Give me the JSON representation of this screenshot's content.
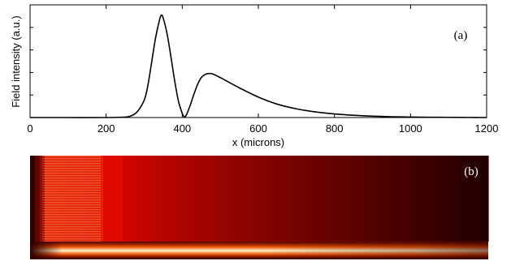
{
  "chart_data": [
    {
      "type": "line",
      "panel_label": "(a)",
      "xlabel": "x (microns)",
      "ylabel": "Field intensity (a.u.)",
      "xlim": [
        0,
        1200
      ],
      "ylim": [
        0,
        1.1
      ],
      "x_ticks": [
        0,
        200,
        400,
        600,
        800,
        1000,
        1200
      ],
      "y_tick_labels_shown": false,
      "grid": false,
      "series": [
        {
          "color": "#000000",
          "x": [
            0,
            100,
            200,
            240,
            260,
            280,
            300,
            310,
            320,
            330,
            340,
            345,
            350,
            360,
            370,
            380,
            390,
            400,
            405,
            410,
            420,
            430,
            440,
            450,
            460,
            470,
            480,
            500,
            520,
            550,
            600,
            650,
            700,
            750,
            800,
            850,
            900,
            950,
            1000,
            1050,
            1100,
            1150,
            1200
          ],
          "y": [
            0,
            0,
            0,
            0.003,
            0.01,
            0.05,
            0.17,
            0.32,
            0.55,
            0.78,
            0.95,
            1.0,
            0.97,
            0.82,
            0.6,
            0.36,
            0.16,
            0.04,
            0.01,
            0.02,
            0.11,
            0.22,
            0.32,
            0.39,
            0.42,
            0.43,
            0.425,
            0.39,
            0.35,
            0.29,
            0.2,
            0.13,
            0.085,
            0.055,
            0.035,
            0.022,
            0.013,
            0.008,
            0.005,
            0.003,
            0.002,
            0.001,
            0.0
          ]
        }
      ]
    },
    {
      "type": "heatmap",
      "panel_label": "(b)",
      "colormap": [
        "#1a0000",
        "#5a0000",
        "#b00000",
        "#e81a00",
        "#ff7a00",
        "#ffd84a",
        "#fffbe0"
      ]
    }
  ]
}
